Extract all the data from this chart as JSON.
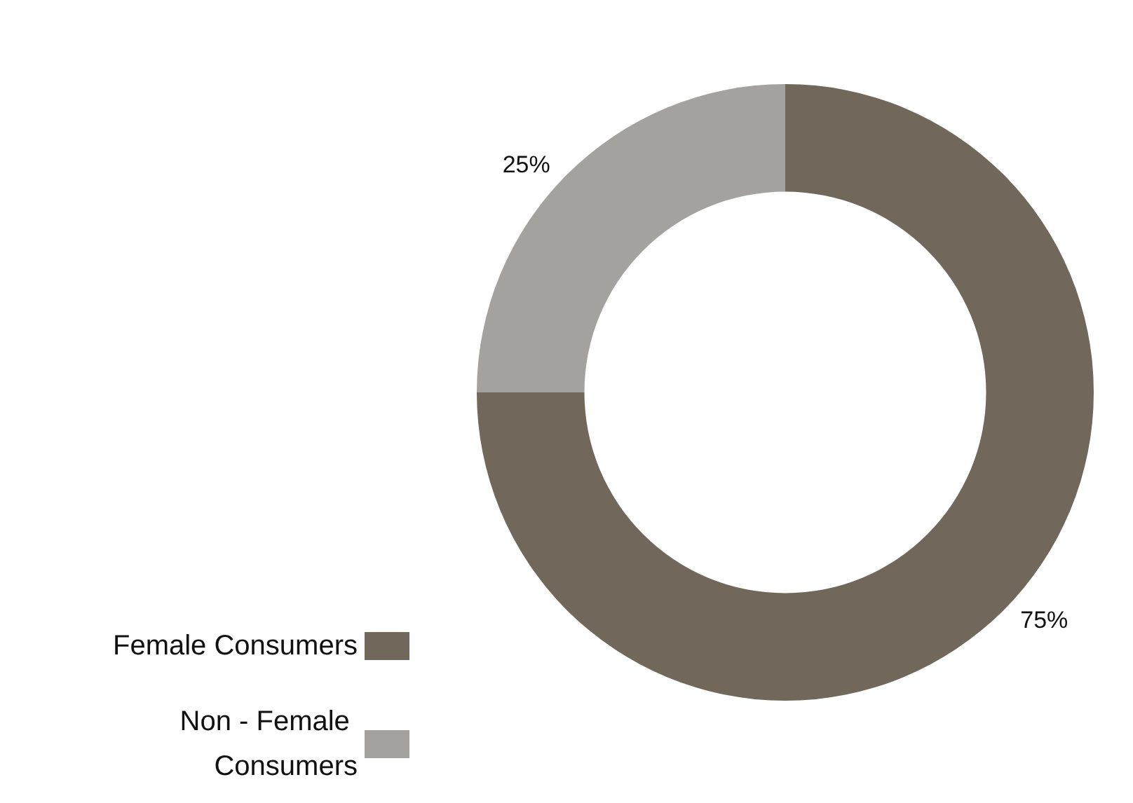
{
  "chart_data": {
    "type": "donut",
    "categories": [
      "Female Consumers",
      "Non - Female Consumers"
    ],
    "values": [
      75,
      25
    ],
    "colors": [
      "#72675b",
      "#a4a29e"
    ],
    "value_labels": [
      "75%",
      "25%"
    ],
    "legend": "bottom left"
  }
}
